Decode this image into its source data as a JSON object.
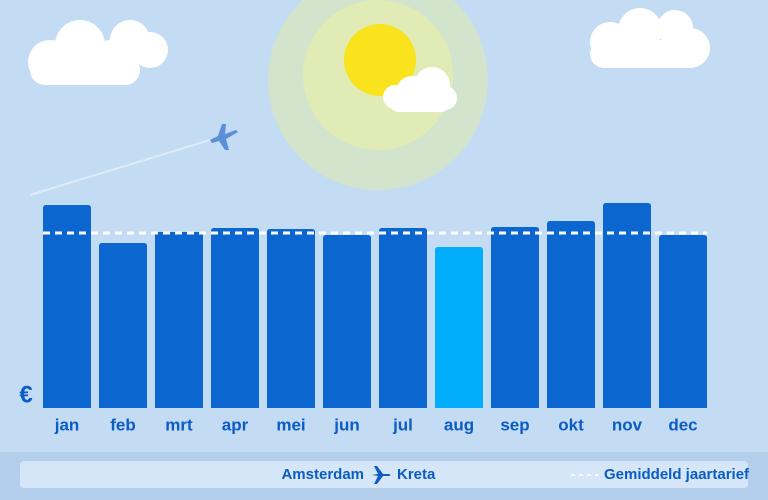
{
  "chart_data": {
    "type": "bar",
    "categories": [
      "jan",
      "feb",
      "mrt",
      "apr",
      "mei",
      "jun",
      "jul",
      "aug",
      "sep",
      "okt",
      "nov",
      "dec"
    ],
    "values": [
      203,
      165,
      176,
      180,
      179,
      173,
      180,
      161,
      181,
      187,
      205,
      173
    ],
    "colors": [
      "#0b66d0",
      "#0b66d0",
      "#0b66d0",
      "#0b66d0",
      "#0b66d0",
      "#0b66d0",
      "#0b66d0",
      "#02adfc",
      "#0b66d0",
      "#0b66d0",
      "#0b66d0",
      "#0b66d0"
    ],
    "ylim": [
      0,
      210
    ],
    "y_label": "€",
    "average": {
      "name": "Gemiddeld jaartarief",
      "value": 175,
      "color": "#ffffff"
    },
    "route": {
      "from": "Amsterdam",
      "to": "Kreta"
    }
  }
}
